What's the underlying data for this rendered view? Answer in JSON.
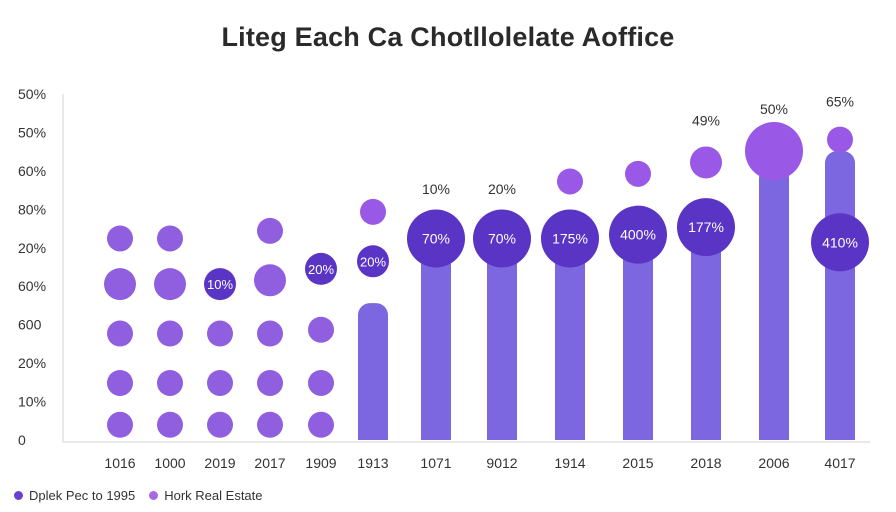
{
  "chart_data": {
    "type": "bar",
    "title": "Liteg Each Ca Chotllolelate Aoffice",
    "xlabel": "",
    "ylabel": "",
    "y_tick_labels": [
      "0",
      "10%",
      "20%",
      "600",
      "60%",
      "20%",
      "80%",
      "60%",
      "50%",
      "50%"
    ],
    "categories": [
      "1016",
      "1000",
      "2019",
      "2017",
      "1909",
      "1913",
      "1071",
      "9012",
      "1914",
      "2015",
      "2018",
      "2006",
      "4017"
    ],
    "bars": [
      null,
      null,
      null,
      null,
      null,
      3.6,
      5.4,
      5.4,
      5.4,
      5.4,
      5.4,
      7.2,
      7.6
    ],
    "bubbles": [
      {
        "ci": 0,
        "level": 0.4,
        "size": "small"
      },
      {
        "ci": 0,
        "level": 1.5,
        "size": "small"
      },
      {
        "ci": 0,
        "level": 2.8,
        "size": "small"
      },
      {
        "ci": 0,
        "level": 4.1,
        "size": "medium"
      },
      {
        "ci": 0,
        "level": 5.3,
        "size": "small"
      },
      {
        "ci": 1,
        "level": 0.4,
        "size": "small"
      },
      {
        "ci": 1,
        "level": 1.5,
        "size": "small"
      },
      {
        "ci": 1,
        "level": 2.8,
        "size": "small"
      },
      {
        "ci": 1,
        "level": 4.1,
        "size": "medium"
      },
      {
        "ci": 1,
        "level": 5.3,
        "size": "small"
      },
      {
        "ci": 2,
        "level": 0.4,
        "size": "small"
      },
      {
        "ci": 2,
        "level": 1.5,
        "size": "small"
      },
      {
        "ci": 2,
        "level": 2.8,
        "size": "small"
      },
      {
        "ci": 2,
        "level": 4.1,
        "size": "medium",
        "label": "10%",
        "dark": true
      },
      {
        "ci": 3,
        "level": 0.4,
        "size": "small"
      },
      {
        "ci": 3,
        "level": 1.5,
        "size": "small"
      },
      {
        "ci": 3,
        "level": 2.8,
        "size": "small"
      },
      {
        "ci": 3,
        "level": 4.2,
        "size": "medium"
      },
      {
        "ci": 3,
        "level": 5.5,
        "size": "small"
      },
      {
        "ci": 4,
        "level": 0.4,
        "size": "small"
      },
      {
        "ci": 4,
        "level": 1.5,
        "size": "small"
      },
      {
        "ci": 4,
        "level": 2.9,
        "size": "small"
      },
      {
        "ci": 4,
        "level": 4.5,
        "size": "medium",
        "label": "20%",
        "dark": true
      },
      {
        "ci": 5,
        "level": 4.7,
        "size": "medium",
        "label": "20%",
        "dark": true
      },
      {
        "ci": 5,
        "level": 6.0,
        "size": "small"
      },
      {
        "ci": 6,
        "level": 5.3,
        "size": "large",
        "label": "70%",
        "dark": true
      },
      {
        "ci": 7,
        "level": 5.3,
        "size": "large",
        "label": "70%",
        "dark": true
      },
      {
        "ci": 8,
        "level": 5.3,
        "size": "large",
        "label": "175%",
        "dark": true
      },
      {
        "ci": 8,
        "level": 6.8,
        "size": "small"
      },
      {
        "ci": 9,
        "level": 5.4,
        "size": "large",
        "label": "400%",
        "dark": true
      },
      {
        "ci": 9,
        "level": 7.0,
        "size": "small"
      },
      {
        "ci": 10,
        "level": 5.6,
        "size": "large",
        "label": "177%",
        "dark": true
      },
      {
        "ci": 10,
        "level": 7.3,
        "size": "medium"
      },
      {
        "ci": 11,
        "level": 7.6,
        "size": "large"
      },
      {
        "ci": 12,
        "level": 5.2,
        "size": "large",
        "label": "410%",
        "dark": true
      },
      {
        "ci": 12,
        "level": 7.9,
        "size": "small"
      }
    ],
    "annotations": [
      {
        "ci": 6,
        "level": 6.6,
        "text": "10%"
      },
      {
        "ci": 7,
        "level": 6.6,
        "text": "20%"
      },
      {
        "ci": 10,
        "level": 8.4,
        "text": "49%"
      },
      {
        "ci": 11,
        "level": 8.7,
        "text": "50%"
      },
      {
        "ci": 12,
        "level": 8.9,
        "text": "65%"
      }
    ],
    "ylim": [
      0,
      9.1
    ],
    "legend": [
      {
        "name": "Dplek Pec to 1995",
        "color": "#6a3fd0"
      },
      {
        "name": "Hork Real Estate",
        "color": "#a768e6"
      }
    ],
    "legend_position": "bottom-left",
    "grid": false
  },
  "colors": {
    "bar": "#7c67e0",
    "bubble_light": "#8f5fe0",
    "bubble_dark": "#5a34c4",
    "bubble_top": "#9a58e6"
  }
}
